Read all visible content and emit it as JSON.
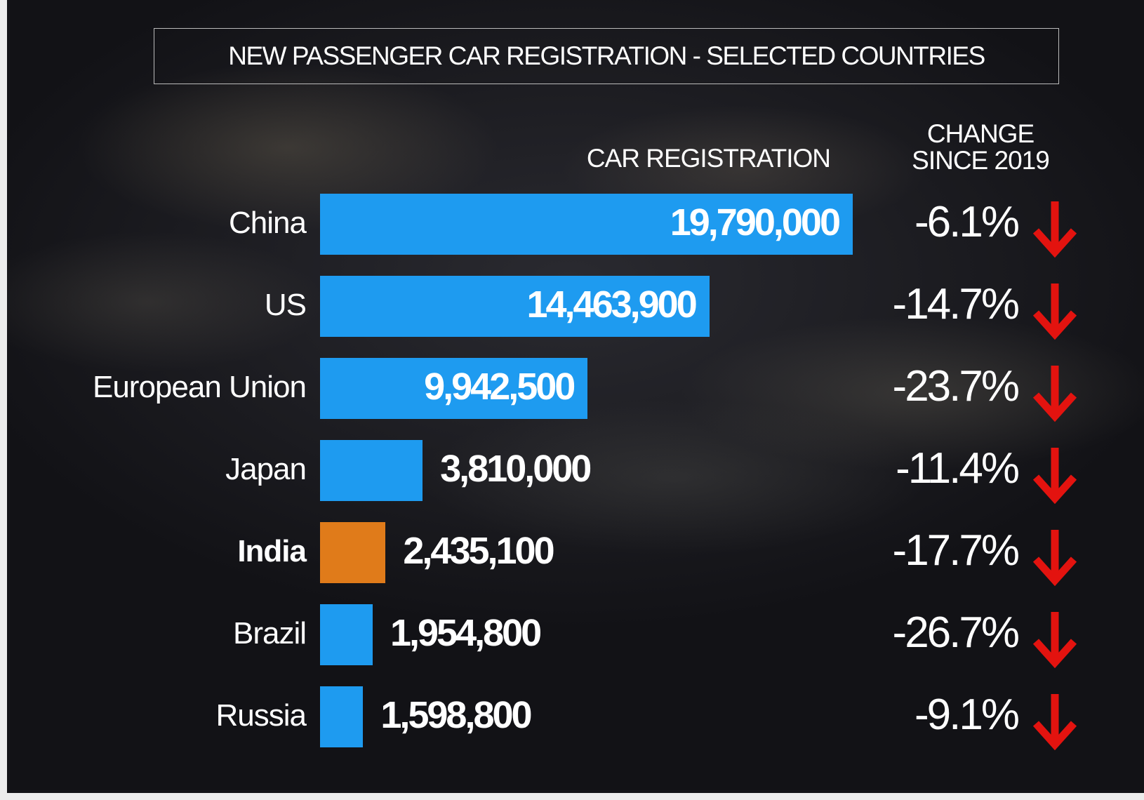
{
  "chart_data": {
    "type": "bar",
    "orientation": "horizontal",
    "title": "NEW PASSENGER CAR REGISTRATION - SELECTED COUNTRIES",
    "value_header": "CAR REGISTRATION",
    "categories": [
      "China",
      "US",
      "European Union",
      "Japan",
      "India",
      "Brazil",
      "Russia"
    ],
    "values": [
      19790000,
      14463900,
      9942500,
      3810000,
      2435100,
      1954800,
      1598800
    ],
    "value_labels": [
      "19,790,000",
      "14,463,900",
      "9,942,500",
      "3,810,000",
      "2,435,100",
      "1,954,800",
      "1,598,800"
    ],
    "colors": [
      "#1e9bf0",
      "#1e9bf0",
      "#1e9bf0",
      "#1e9bf0",
      "#e07b1a",
      "#1e9bf0",
      "#1e9bf0"
    ],
    "change": {
      "name": "CHANGE SINCE 2019",
      "values": [
        -6.1,
        -14.7,
        -23.7,
        -11.4,
        -17.7,
        -26.7,
        -9.1
      ],
      "value_labels": [
        "-6.1%",
        "-14.7%",
        "-23.7%",
        "-11.4%",
        "-17.7%",
        "-26.7%",
        "-9.1%"
      ],
      "color": "#e3130f"
    }
  }
}
